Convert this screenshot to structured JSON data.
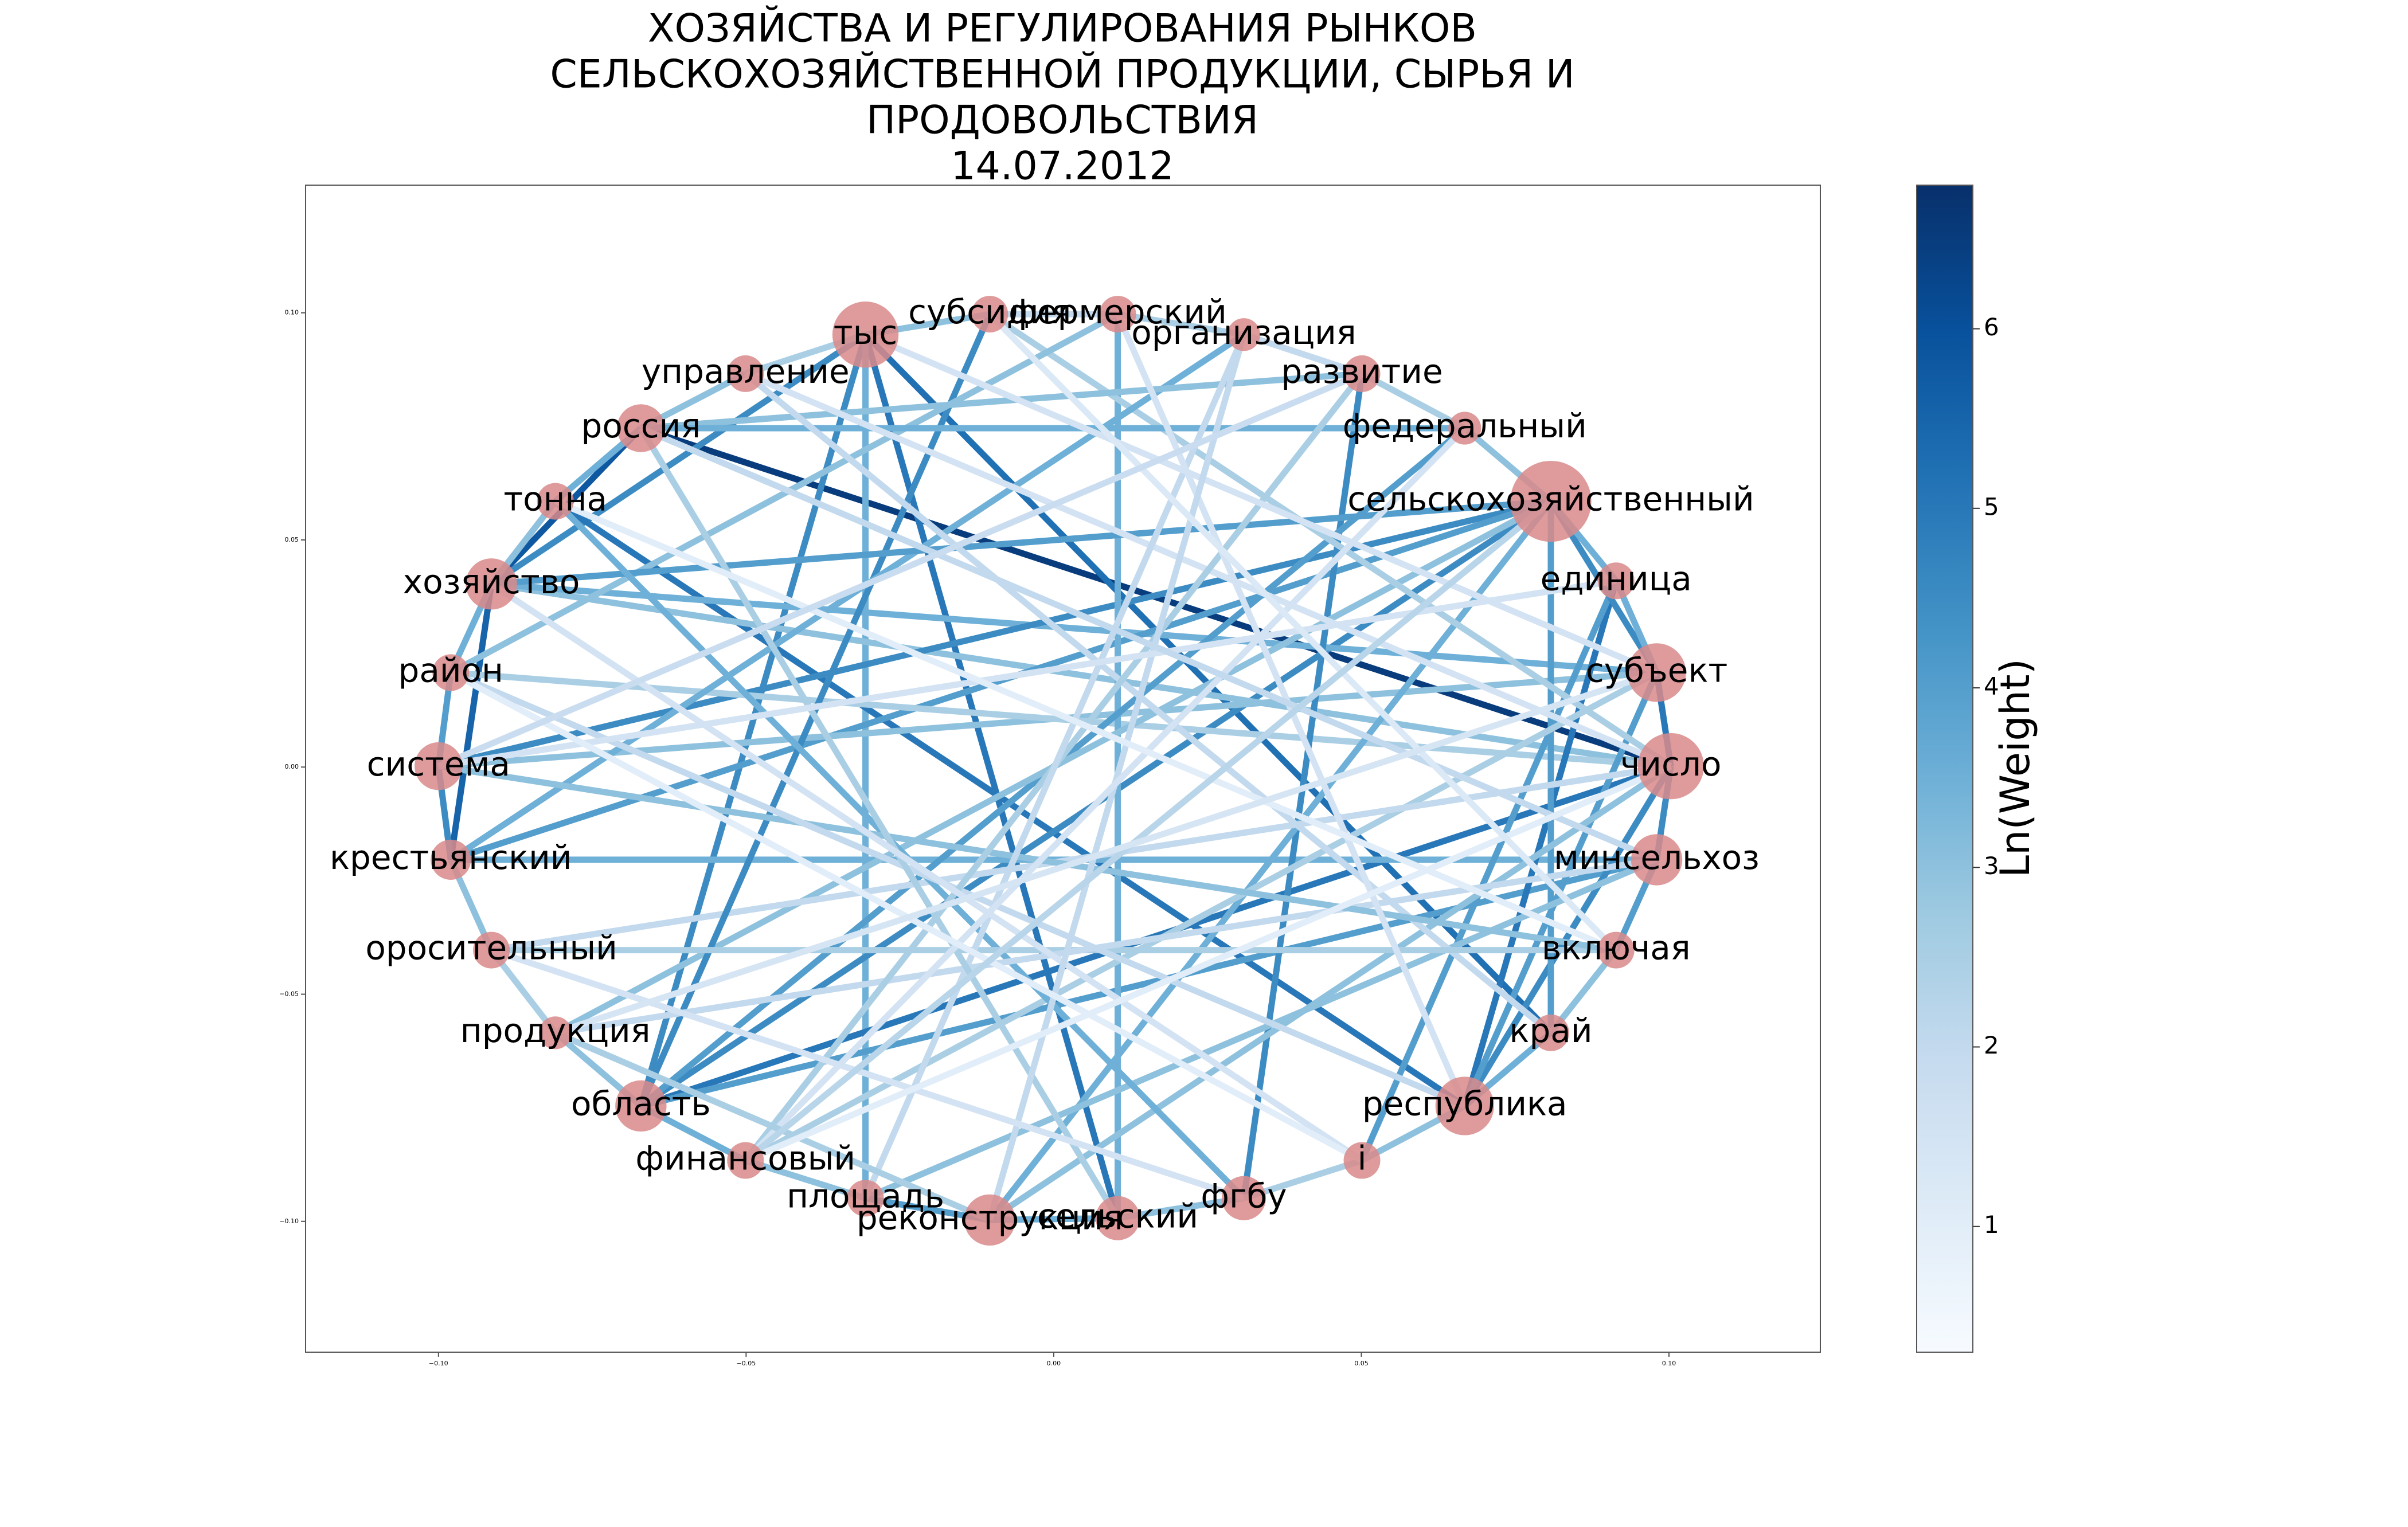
{
  "chart_data": {
    "type": "network",
    "title": [
      "ХОЗЯЙСТВА И РЕГУЛИРОВАНИЯ РЫНКОВ",
      "СЕЛЬСКОХОЗЯЙСТВЕННОЙ ПРОДУКЦИИ, СЫРЬЯ И",
      "ПРОДОВОЛЬСТВИЯ",
      "14.07.2012"
    ],
    "xlim": [
      -0.1216,
      0.1246
    ],
    "ylim": [
      -0.1288,
      0.1281
    ],
    "xticks": [
      {
        "value": -0.1,
        "label": "−0.10"
      },
      {
        "value": -0.05,
        "label": "−0.05"
      },
      {
        "value": 0,
        "label": "0.00"
      },
      {
        "value": 0.05,
        "label": "0.05"
      },
      {
        "value": 0.1,
        "label": "0.10"
      }
    ],
    "yticks": [
      {
        "value": 0.1,
        "label": "0.10"
      },
      {
        "value": 0.05,
        "label": "0.05"
      },
      {
        "value": 0,
        "label": "0.00"
      },
      {
        "value": -0.05,
        "label": "−0.05"
      },
      {
        "value": -0.1,
        "label": "−0.10"
      }
    ],
    "node_color": "#d98a8a",
    "nodes": [
      {
        "label": "тыс",
        "x": -0.0306,
        "y": 0.0952,
        "size": 1300
      },
      {
        "label": "субсидия",
        "x": -0.0104,
        "y": 0.0997,
        "size": 400
      },
      {
        "label": "фермерский",
        "x": 0.0104,
        "y": 0.0997,
        "size": 400
      },
      {
        "label": "организация",
        "x": 0.0309,
        "y": 0.0952,
        "size": 320
      },
      {
        "label": "развитие",
        "x": 0.0501,
        "y": 0.0866,
        "size": 400
      },
      {
        "label": "федеральный",
        "x": 0.0668,
        "y": 0.0746,
        "size": 320
      },
      {
        "label": "сельскохозяйственный",
        "x": 0.0808,
        "y": 0.0585,
        "size": 1950
      },
      {
        "label": "единица",
        "x": 0.0914,
        "y": 0.041,
        "size": 400
      },
      {
        "label": "субъект",
        "x": 0.098,
        "y": 0.0208,
        "size": 1020
      },
      {
        "label": "число",
        "x": 0.1003,
        "y": 0.0002,
        "size": 1300
      },
      {
        "label": "минсельхоз",
        "x": 0.098,
        "y": -0.0204,
        "size": 780
      },
      {
        "label": "включая",
        "x": 0.0914,
        "y": -0.0403,
        "size": 400
      },
      {
        "label": "край",
        "x": 0.0808,
        "y": -0.0585,
        "size": 400
      },
      {
        "label": "республика",
        "x": 0.0668,
        "y": -0.0746,
        "size": 1020
      },
      {
        "label": "i",
        "x": 0.0501,
        "y": -0.0866,
        "size": 400
      },
      {
        "label": "фгбу",
        "x": 0.0309,
        "y": -0.0949,
        "size": 580
      },
      {
        "label": "сельский",
        "x": 0.0104,
        "y": -0.0993,
        "size": 580
      },
      {
        "label": "реконструкция",
        "x": -0.0104,
        "y": -0.0997,
        "size": 780
      },
      {
        "label": "площадь",
        "x": -0.0306,
        "y": -0.0949,
        "size": 400
      },
      {
        "label": "финансовый",
        "x": -0.0501,
        "y": -0.0866,
        "size": 400
      },
      {
        "label": "область",
        "x": -0.0671,
        "y": -0.0746,
        "size": 780
      },
      {
        "label": "продукция",
        "x": -0.081,
        "y": -0.0585,
        "size": 320
      },
      {
        "label": "оросительный",
        "x": -0.0914,
        "y": -0.0403,
        "size": 400
      },
      {
        "label": "крестьянский",
        "x": -0.098,
        "y": -0.0204,
        "size": 480
      },
      {
        "label": "система",
        "x": -0.1,
        "y": 0.0002,
        "size": 680
      },
      {
        "label": "район",
        "x": -0.098,
        "y": 0.0208,
        "size": 400
      },
      {
        "label": "хозяйство",
        "x": -0.0914,
        "y": 0.0403,
        "size": 780
      },
      {
        "label": "тонна",
        "x": -0.081,
        "y": 0.0585,
        "size": 400
      },
      {
        "label": "россия",
        "x": -0.0671,
        "y": 0.0746,
        "size": 680
      },
      {
        "label": "управление",
        "x": -0.0501,
        "y": 0.0866,
        "size": 400
      }
    ],
    "edges": [
      {
        "source": 28,
        "target": 9,
        "weight": 6.5
      },
      {
        "source": 28,
        "target": 26,
        "weight": 5.8
      },
      {
        "source": 26,
        "target": 23,
        "weight": 5.5
      },
      {
        "source": 26,
        "target": 0,
        "weight": 4.5
      },
      {
        "source": 0,
        "target": 12,
        "weight": 5.2
      },
      {
        "source": 0,
        "target": 16,
        "weight": 5.0
      },
      {
        "source": 0,
        "target": 20,
        "weight": 4.5
      },
      {
        "source": 0,
        "target": 18,
        "weight": 3.5
      },
      {
        "source": 27,
        "target": 13,
        "weight": 5.0
      },
      {
        "source": 20,
        "target": 9,
        "weight": 5.0
      },
      {
        "source": 20,
        "target": 6,
        "weight": 4.5
      },
      {
        "source": 20,
        "target": 10,
        "weight": 4.0
      },
      {
        "source": 26,
        "target": 9,
        "weight": 3.0
      },
      {
        "source": 26,
        "target": 8,
        "weight": 3.5
      },
      {
        "source": 24,
        "target": 6,
        "weight": 4.5
      },
      {
        "source": 23,
        "target": 6,
        "weight": 4.0
      },
      {
        "source": 23,
        "target": 10,
        "weight": 3.5
      },
      {
        "source": 24,
        "target": 8,
        "weight": 3.0
      },
      {
        "source": 25,
        "target": 9,
        "weight": 2.5
      },
      {
        "source": 13,
        "target": 7,
        "weight": 5.0
      },
      {
        "source": 13,
        "target": 9,
        "weight": 4.5
      },
      {
        "source": 13,
        "target": 8,
        "weight": 4.0
      },
      {
        "source": 12,
        "target": 6,
        "weight": 4.0
      },
      {
        "source": 15,
        "target": 4,
        "weight": 4.5
      },
      {
        "source": 14,
        "target": 7,
        "weight": 4.0
      },
      {
        "source": 16,
        "target": 2,
        "weight": 3.5
      },
      {
        "source": 17,
        "target": 6,
        "weight": 3.5
      },
      {
        "source": 17,
        "target": 9,
        "weight": 3.0
      },
      {
        "source": 18,
        "target": 10,
        "weight": 3.0
      },
      {
        "source": 19,
        "target": 8,
        "weight": 2.5
      },
      {
        "source": 20,
        "target": 5,
        "weight": 4.0
      },
      {
        "source": 21,
        "target": 6,
        "weight": 3.0
      },
      {
        "source": 22,
        "target": 9,
        "weight": 2.0
      },
      {
        "source": 1,
        "target": 20,
        "weight": 4.5
      },
      {
        "source": 1,
        "target": 9,
        "weight": 2.5
      },
      {
        "source": 2,
        "target": 25,
        "weight": 3.0
      },
      {
        "source": 3,
        "target": 23,
        "weight": 3.5
      },
      {
        "source": 4,
        "target": 28,
        "weight": 3.0
      },
      {
        "source": 5,
        "target": 28,
        "weight": 3.5
      },
      {
        "source": 6,
        "target": 26,
        "weight": 4.0
      },
      {
        "source": 6,
        "target": 8,
        "weight": 4.5
      },
      {
        "source": 8,
        "target": 9,
        "weight": 5.0
      },
      {
        "source": 9,
        "target": 10,
        "weight": 4.5
      },
      {
        "source": 7,
        "target": 8,
        "weight": 3.5
      },
      {
        "source": 10,
        "target": 11,
        "weight": 4.0
      },
      {
        "source": 11,
        "target": 12,
        "weight": 3.0
      },
      {
        "source": 12,
        "target": 13,
        "weight": 3.5
      },
      {
        "source": 13,
        "target": 14,
        "weight": 3.0
      },
      {
        "source": 14,
        "target": 15,
        "weight": 2.5
      },
      {
        "source": 15,
        "target": 16,
        "weight": 3.0
      },
      {
        "source": 16,
        "target": 17,
        "weight": 3.5
      },
      {
        "source": 17,
        "target": 18,
        "weight": 4.0
      },
      {
        "source": 18,
        "target": 19,
        "weight": 3.0
      },
      {
        "source": 19,
        "target": 20,
        "weight": 3.5
      },
      {
        "source": 20,
        "target": 21,
        "weight": 3.0
      },
      {
        "source": 21,
        "target": 22,
        "weight": 2.5
      },
      {
        "source": 22,
        "target": 23,
        "weight": 3.0
      },
      {
        "source": 23,
        "target": 24,
        "weight": 4.5
      },
      {
        "source": 24,
        "target": 25,
        "weight": 4.0
      },
      {
        "source": 25,
        "target": 26,
        "weight": 3.5
      },
      {
        "source": 26,
        "target": 27,
        "weight": 3.0
      },
      {
        "source": 27,
        "target": 28,
        "weight": 3.5
      },
      {
        "source": 28,
        "target": 29,
        "weight": 3.0
      },
      {
        "source": 29,
        "target": 0,
        "weight": 2.5
      },
      {
        "source": 0,
        "target": 1,
        "weight": 3.0
      },
      {
        "source": 1,
        "target": 2,
        "weight": 2.0
      },
      {
        "source": 2,
        "target": 3,
        "weight": 2.5
      },
      {
        "source": 3,
        "target": 4,
        "weight": 2.0
      },
      {
        "source": 4,
        "target": 5,
        "weight": 2.5
      },
      {
        "source": 5,
        "target": 6,
        "weight": 3.0
      },
      {
        "source": 6,
        "target": 7,
        "weight": 3.5
      },
      {
        "source": 29,
        "target": 12,
        "weight": 2.0
      },
      {
        "source": 29,
        "target": 9,
        "weight": 1.5
      },
      {
        "source": 27,
        "target": 15,
        "weight": 3.5
      },
      {
        "source": 22,
        "target": 11,
        "weight": 2.5
      },
      {
        "source": 21,
        "target": 10,
        "weight": 2.0
      },
      {
        "source": 24,
        "target": 11,
        "weight": 3.0
      },
      {
        "source": 25,
        "target": 13,
        "weight": 2.0
      },
      {
        "source": 19,
        "target": 4,
        "weight": 2.5
      },
      {
        "source": 18,
        "target": 3,
        "weight": 2.0
      },
      {
        "source": 16,
        "target": 28,
        "weight": 2.5
      },
      {
        "source": 14,
        "target": 26,
        "weight": 1.5
      },
      {
        "source": 0,
        "target": 8,
        "weight": 1.5
      },
      {
        "source": 2,
        "target": 13,
        "weight": 1.5
      },
      {
        "source": 3,
        "target": 17,
        "weight": 2.0
      },
      {
        "source": 5,
        "target": 19,
        "weight": 1.5
      },
      {
        "source": 7,
        "target": 24,
        "weight": 1.5
      },
      {
        "source": 10,
        "target": 28,
        "weight": 2.0
      },
      {
        "source": 11,
        "target": 27,
        "weight": 1.0
      },
      {
        "source": 14,
        "target": 25,
        "weight": 1.0
      },
      {
        "source": 15,
        "target": 22,
        "weight": 1.5
      },
      {
        "source": 17,
        "target": 21,
        "weight": 2.5
      },
      {
        "source": 19,
        "target": 9,
        "weight": 1.0
      },
      {
        "source": 1,
        "target": 11,
        "weight": 1.2
      },
      {
        "source": 4,
        "target": 24,
        "weight": 1.8
      },
      {
        "source": 6,
        "target": 19,
        "weight": 2.2
      },
      {
        "source": 8,
        "target": 21,
        "weight": 1.4
      }
    ],
    "colorbar": {
      "label": "Ln(Weight)",
      "lim": [
        0.3,
        6.8
      ],
      "ticks": [
        1,
        2,
        3,
        4,
        5,
        6
      ],
      "colormap": [
        "#f7fbff",
        "#deebf7",
        "#c6dbef",
        "#9ecae1",
        "#6baed6",
        "#4292c6",
        "#2171b5",
        "#08519c",
        "#08306b"
      ]
    }
  }
}
